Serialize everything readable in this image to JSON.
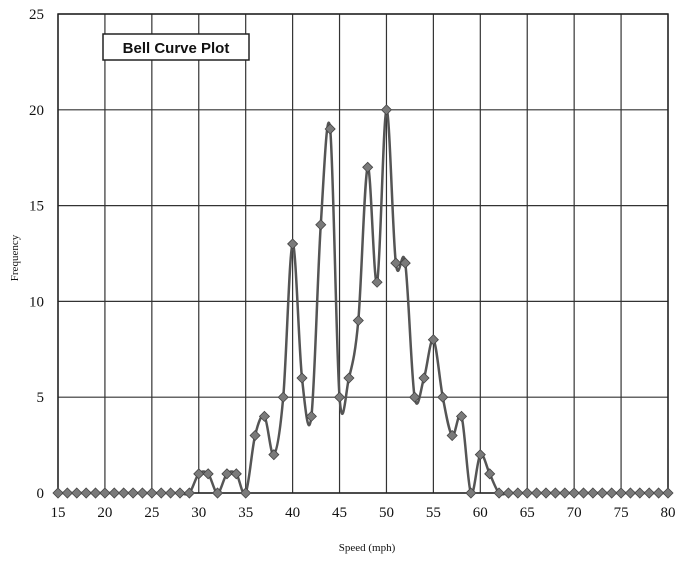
{
  "chart_data": {
    "type": "line",
    "title": "Bell Curve Plot",
    "xlabel": "Speed (mph)",
    "ylabel": "Frequency",
    "xlim": [
      15,
      80
    ],
    "ylim": [
      0,
      25
    ],
    "x_ticks": [
      15,
      20,
      25,
      30,
      35,
      40,
      45,
      50,
      55,
      60,
      65,
      70,
      75,
      80
    ],
    "y_ticks": [
      0,
      5,
      10,
      15,
      20,
      25
    ],
    "grid": true,
    "legend": "none",
    "marker": "diamond",
    "line_color": "#555555",
    "marker_color": "#7a7a7a",
    "series": [
      {
        "x": [
          15,
          16,
          17,
          18,
          19,
          20,
          21,
          22,
          23,
          24,
          25,
          26,
          27,
          28,
          29,
          30,
          31,
          32,
          33,
          34,
          35,
          36,
          37,
          38,
          39,
          40,
          41,
          42,
          43,
          44,
          45,
          46,
          47,
          48,
          49,
          50,
          51,
          52,
          53,
          54,
          55,
          56,
          57,
          58,
          59,
          60,
          61,
          62,
          63,
          64,
          65,
          66,
          67,
          68,
          69,
          70,
          71,
          72,
          73,
          74,
          75,
          76,
          77,
          78,
          79,
          80
        ],
        "y": [
          0,
          0,
          0,
          0,
          0,
          0,
          0,
          0,
          0,
          0,
          0,
          0,
          0,
          0,
          0,
          1,
          1,
          0,
          1,
          1,
          0,
          3,
          4,
          2,
          5,
          13,
          6,
          4,
          14,
          19,
          5,
          6,
          9,
          17,
          11,
          20,
          12,
          12,
          5,
          6,
          8,
          5,
          3,
          4,
          0,
          2,
          1,
          0,
          0,
          0,
          0,
          0,
          0,
          0,
          0,
          0,
          0,
          0,
          0,
          0,
          0,
          0,
          0,
          0,
          0,
          0
        ]
      }
    ]
  }
}
